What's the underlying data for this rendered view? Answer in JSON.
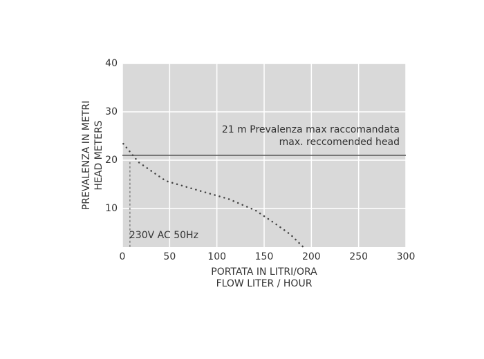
{
  "chart_data": {
    "type": "line",
    "x_label": [
      "PORTATA IN LITRI/ORA",
      "FLOW LITER / HOUR"
    ],
    "y_label": [
      "PREVALENZA IN METRI",
      "HEAD METERS"
    ],
    "x": [
      1,
      17,
      46,
      83,
      112,
      141,
      163,
      178,
      191
    ],
    "series": [
      {
        "color": "#444444",
        "values": [
          23.4,
          19.6,
          15.7,
          13.6,
          12,
          9.6,
          6.7,
          4.6,
          2.1
        ]
      }
    ],
    "xlim": [
      0,
      300
    ],
    "xticks": [
      0,
      50,
      100,
      150,
      200,
      250,
      300
    ],
    "ylim": [
      2,
      40
    ],
    "yticks": [
      10,
      20,
      30,
      40
    ],
    "grid": true,
    "max_head": {
      "value": 21,
      "label": [
        "21 m Prevalenza max raccomandata",
        "max. reccomended head"
      ]
    },
    "voltage": {
      "x": 8,
      "label": "230V AC 50Hz"
    }
  }
}
